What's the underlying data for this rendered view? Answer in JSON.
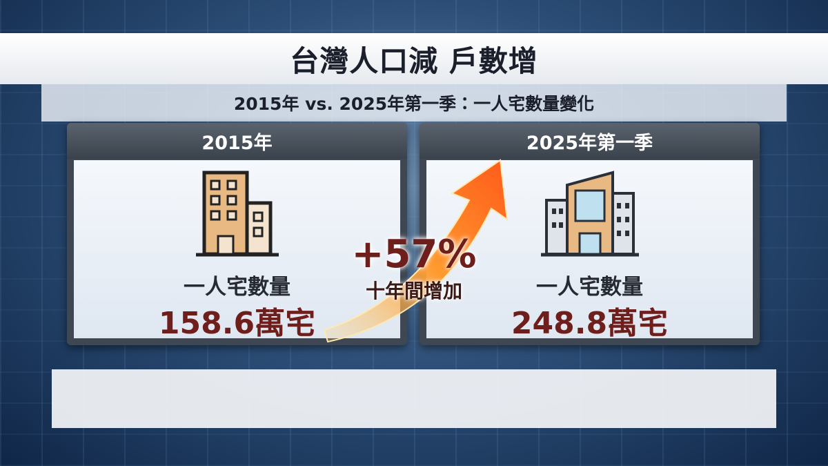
{
  "header": {
    "title": "台灣人口減 戶數增",
    "subtitle": "2015年 vs. 2025年第一季：一人宅數量變化"
  },
  "panels": [
    {
      "heading": "2015年",
      "label": "一人宅數量",
      "value": "158.6萬宅"
    },
    {
      "heading": "2025年第一季",
      "label": "一人宅數量",
      "value": "248.8萬宅"
    }
  ],
  "change": {
    "value": "+57%",
    "caption": "十年間增加"
  }
}
